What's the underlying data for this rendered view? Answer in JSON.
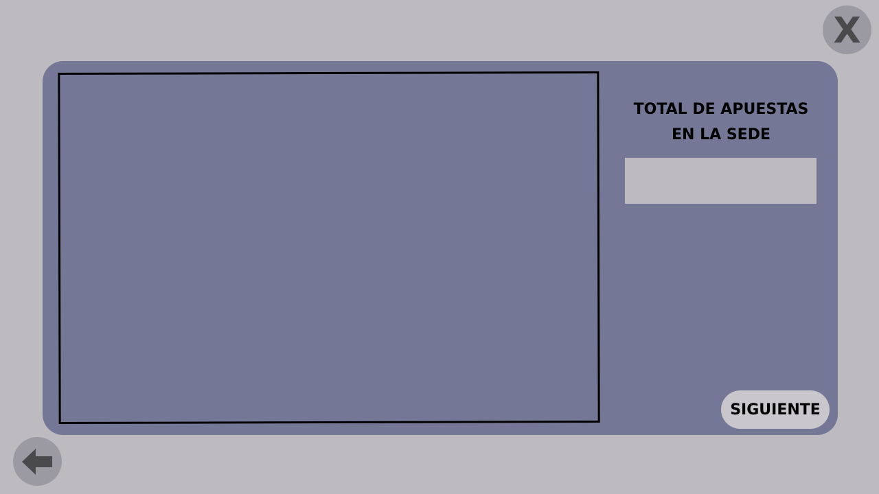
{
  "header": {
    "close_label": "X"
  },
  "summary": {
    "title": "TOTAL DE APUESTAS\nEN LA SEDE",
    "total_value": ""
  },
  "actions": {
    "next_label": "SIGUIENTE"
  },
  "icons": {
    "back": "arrow-left-icon"
  },
  "colors": {
    "background": "#bdbbbf",
    "panel": "#747896",
    "round_button": "#9b9aa3",
    "icon": "#4a4a4c",
    "next_button": "#c9c7cb"
  }
}
